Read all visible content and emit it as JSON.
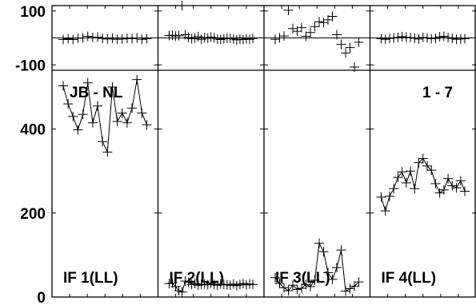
{
  "chart_data": {
    "type": "line",
    "baseline": "JB - NL",
    "scan": "1 - 7",
    "phase_axis": {
      "ylim": [
        -120,
        120
      ],
      "ticks": [
        100,
        -100
      ],
      "tick_labels": [
        "100",
        "-100"
      ]
    },
    "amp_axis": {
      "ylim": [
        0,
        540
      ],
      "ticks": [
        400,
        200,
        0
      ],
      "tick_labels": [
        "400",
        "200",
        "0"
      ]
    },
    "panels": [
      {
        "label": "IF 1(LL)",
        "amp_series": {
          "name": "",
          "x": [
            0,
            1,
            2,
            3,
            4,
            5,
            6,
            7,
            8,
            9,
            10,
            11,
            12,
            13,
            14,
            15,
            16,
            17
          ],
          "values": [
            503,
            460,
            430,
            398,
            435,
            510,
            415,
            455,
            370,
            345,
            500,
            418,
            438,
            415,
            450,
            518,
            438,
            410
          ]
        },
        "phase_series": {
          "name": "",
          "x": [
            0,
            1,
            2,
            3,
            4,
            5,
            6,
            7,
            8,
            9,
            10,
            11,
            12,
            13,
            14,
            15,
            16,
            17
          ],
          "values": [
            -6,
            -3,
            -6,
            -1,
            0,
            6,
            2,
            3,
            -2,
            -4,
            -1,
            -5,
            -4,
            -2,
            -3,
            0,
            -5,
            -3
          ]
        }
      },
      {
        "label": "IF 2(LL)",
        "amp_series": {
          "name": "",
          "x": [
            0,
            1,
            2,
            3,
            4,
            5,
            6,
            7,
            8,
            9,
            10,
            11,
            12,
            13,
            14,
            15,
            16,
            17,
            18,
            19,
            20,
            21,
            22,
            23,
            24,
            25,
            26
          ],
          "values": [
            32,
            33,
            25,
            15,
            12,
            38,
            35,
            30,
            32,
            28,
            30,
            31,
            29,
            33,
            30,
            28,
            31,
            30,
            29,
            28,
            31,
            27,
            30,
            32,
            29,
            31,
            30
          ]
        },
        "phase_series": {
          "name": "",
          "x": [
            0,
            1,
            2,
            3,
            4,
            5,
            6,
            7,
            8,
            9,
            10,
            11,
            12,
            13,
            14,
            15,
            16,
            17,
            18,
            19,
            20,
            21,
            22,
            23,
            24,
            25,
            26
          ],
          "values": [
            9,
            10,
            7,
            8,
            130,
            12,
            2,
            -3,
            -1,
            5,
            -5,
            1,
            -1,
            3,
            0,
            -4,
            -6,
            -3,
            -1,
            -2,
            -4,
            -7,
            -5,
            -6,
            -3,
            -5,
            -2
          ]
        }
      },
      {
        "label": "IF 3(LL)",
        "amp_series": {
          "name": "",
          "x": [
            0,
            1,
            2,
            3,
            4,
            5,
            6,
            7,
            8,
            9,
            10,
            11,
            12,
            13,
            14,
            15,
            16,
            17,
            18,
            19
          ],
          "values": [
            46,
            32,
            22,
            15,
            28,
            18,
            21,
            30,
            25,
            40,
            128,
            108,
            58,
            42,
            70,
            112,
            14,
            20,
            26,
            36
          ]
        },
        "phase_series": {
          "name": "",
          "x": [
            0,
            1,
            2,
            3,
            4,
            5,
            6,
            7,
            8,
            9,
            10,
            11,
            12,
            13,
            14,
            15,
            16,
            17,
            18,
            19
          ],
          "values": [
            -5,
            0,
            7,
            103,
            35,
            25,
            38,
            6,
            20,
            42,
            60,
            57,
            67,
            80,
            12,
            -24,
            -56,
            -36,
            -108,
            -16
          ]
        }
      },
      {
        "label": "IF 4(LL)",
        "amp_series": {
          "name": "",
          "x": [
            0,
            1,
            2,
            3,
            4,
            5,
            6,
            7,
            8,
            9,
            10,
            11,
            12,
            13,
            14,
            15,
            16,
            17,
            18,
            19,
            20
          ],
          "values": [
            238,
            205,
            240,
            258,
            285,
            298,
            272,
            300,
            258,
            320,
            330,
            312,
            302,
            270,
            248,
            255,
            282,
            265,
            260,
            277,
            252
          ]
        },
        "phase_series": {
          "name": "",
          "x": [
            0,
            1,
            2,
            3,
            4,
            5,
            6,
            7,
            8,
            9,
            10,
            11,
            12,
            13,
            14,
            15,
            16,
            17,
            18,
            19,
            20
          ],
          "values": [
            -3,
            -5,
            -2,
            0,
            2,
            5,
            3,
            1,
            -1,
            -4,
            2,
            0,
            -3,
            -2,
            4,
            6,
            1,
            -2,
            -5,
            -4,
            -3
          ]
        }
      }
    ]
  }
}
